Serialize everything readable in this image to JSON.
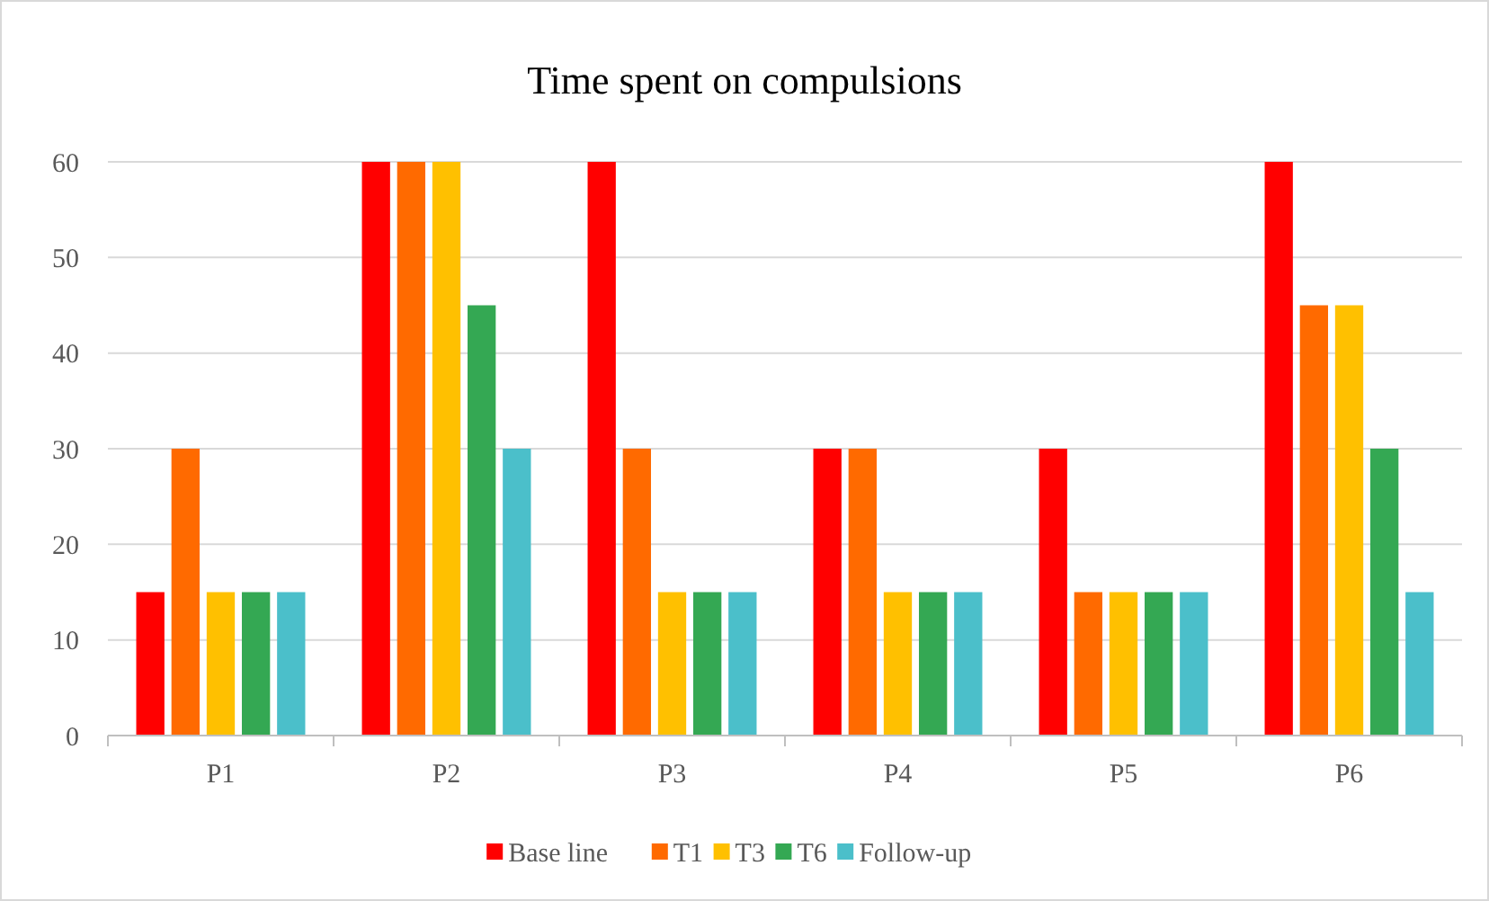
{
  "chart_data": {
    "type": "bar",
    "title": "Time spent on compulsions",
    "categories": [
      "P1",
      "P2",
      "P3",
      "P4",
      "P5",
      "P6"
    ],
    "series": [
      {
        "name": "Base line",
        "color": "#ff0000",
        "values": [
          15,
          60,
          60,
          30,
          30,
          60
        ]
      },
      {
        "name": "T1",
        "color": "#ff6a00",
        "values": [
          30,
          60,
          30,
          30,
          15,
          45
        ]
      },
      {
        "name": "T3",
        "color": "#ffc000",
        "values": [
          15,
          60,
          15,
          15,
          15,
          45
        ]
      },
      {
        "name": "T6",
        "color": "#34a853",
        "values": [
          15,
          45,
          15,
          15,
          15,
          30
        ]
      },
      {
        "name": "Follow-up",
        "color": "#4bbfca",
        "values": [
          15,
          30,
          15,
          15,
          15,
          15
        ]
      }
    ],
    "ylim": [
      0,
      60
    ],
    "yticks": [
      0,
      10,
      20,
      30,
      40,
      50,
      60
    ],
    "grid": "y",
    "legend": "bottom"
  }
}
